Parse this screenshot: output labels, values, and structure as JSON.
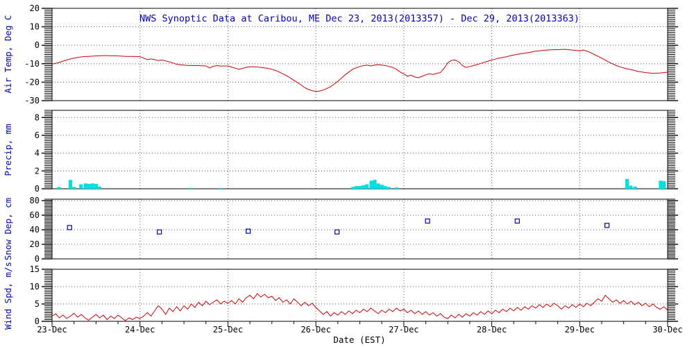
{
  "colors": {
    "title": "#0000bb",
    "axis_label": "#0000bb",
    "tick_label": "#000000",
    "frame": "#000000",
    "grid": "#555555",
    "temp_line": "#cc0000",
    "wind_line": "#cc0000",
    "precip_bar": "#00e0e0",
    "snow_marker": "#0000bb"
  },
  "chart_data": {
    "type": "line",
    "title": "NWS Synoptic Data at Caribou, ME   Dec 23, 2013(2013357) - Dec 29, 2013(2013363)",
    "xlabel": "Date (EST)",
    "x_unit": "days since Dec 23 2013 00:00 EST",
    "xlim": [
      0,
      7
    ],
    "x_tick_labels": [
      "23-Dec",
      "24-Dec",
      "25-Dec",
      "26-Dec",
      "27-Dec",
      "28-Dec",
      "29-Dec",
      "30-Dec"
    ],
    "grid": "dotted",
    "legend": "none",
    "panels": [
      {
        "id": "air-temp",
        "ylabel": "Air Temp, Deg C",
        "ylim": [
          -30,
          20
        ],
        "yticks": [
          20,
          10,
          0,
          -10,
          -20,
          -30
        ],
        "yminor": 1,
        "series_type": "line",
        "step_days": 0.0416667,
        "values": [
          -10.2,
          -9.8,
          -9.3,
          -8.6,
          -8.0,
          -7.4,
          -7.0,
          -6.6,
          -6.3,
          -6.1,
          -6.0,
          -5.9,
          -5.8,
          -5.7,
          -5.6,
          -5.6,
          -5.7,
          -5.7,
          -5.8,
          -5.9,
          -6.0,
          -6.0,
          -6.0,
          -6.1,
          -6.2,
          -7.0,
          -7.8,
          -7.4,
          -7.8,
          -8.3,
          -8.0,
          -8.5,
          -9.0,
          -9.6,
          -10.3,
          -10.6,
          -10.8,
          -10.9,
          -11.0,
          -11.0,
          -11.0,
          -11.1,
          -11.2,
          -12.3,
          -11.4,
          -11.0,
          -11.3,
          -11.2,
          -11.2,
          -11.8,
          -12.4,
          -13.0,
          -12.5,
          -11.9,
          -11.7,
          -11.7,
          -11.8,
          -12.0,
          -12.2,
          -12.6,
          -13.0,
          -13.7,
          -14.5,
          -15.5,
          -16.5,
          -17.7,
          -19.0,
          -20.2,
          -21.5,
          -23.0,
          -24.0,
          -24.6,
          -25.0,
          -24.8,
          -24.3,
          -23.4,
          -22.5,
          -21.0,
          -19.5,
          -17.8,
          -16.0,
          -14.5,
          -13.0,
          -12.2,
          -11.5,
          -11.0,
          -10.8,
          -11.2,
          -10.8,
          -10.5,
          -10.8,
          -11.0,
          -11.5,
          -12.0,
          -13.0,
          -14.5,
          -15.5,
          -16.8,
          -16.2,
          -17.2,
          -17.6,
          -16.8,
          -16.0,
          -15.5,
          -15.8,
          -15.2,
          -14.8,
          -12.5,
          -9.5,
          -8.2,
          -8.0,
          -9.0,
          -11.0,
          -12.0,
          -11.5,
          -11.0,
          -10.5,
          -9.8,
          -9.2,
          -8.6,
          -8.0,
          -7.5,
          -7.0,
          -6.6,
          -6.2,
          -5.7,
          -5.3,
          -4.9,
          -4.6,
          -4.3,
          -4.0,
          -3.6,
          -3.2,
          -3.0,
          -2.8,
          -2.6,
          -2.5,
          -2.4,
          -2.4,
          -2.3,
          -2.2,
          -2.4,
          -2.6,
          -2.8,
          -3.0,
          -2.6,
          -3.2,
          -4.0,
          -5.0,
          -6.0,
          -7.0,
          -8.1,
          -9.2,
          -10.1,
          -11.0,
          -11.7,
          -12.3,
          -12.8,
          -13.2,
          -13.7,
          -14.2,
          -14.5,
          -14.8,
          -15.0,
          -15.2,
          -15.1,
          -15.0,
          -14.8,
          -14.6
        ]
      },
      {
        "id": "precip",
        "ylabel": "Precip, mm",
        "ylim": [
          0,
          8.8
        ],
        "yticks": [
          8,
          6,
          4,
          2,
          0
        ],
        "yminor": 0.2,
        "series_type": "bar",
        "points": [
          [
            0.08,
            0.2
          ],
          [
            0.21,
            1.0
          ],
          [
            0.25,
            0.2
          ],
          [
            0.33,
            0.5
          ],
          [
            0.38,
            0.6
          ],
          [
            0.42,
            0.55
          ],
          [
            0.46,
            0.6
          ],
          [
            0.5,
            0.55
          ],
          [
            0.54,
            0.25
          ],
          [
            1.58,
            0.1
          ],
          [
            1.92,
            0.08
          ],
          [
            3.42,
            0.2
          ],
          [
            3.46,
            0.3
          ],
          [
            3.5,
            0.3
          ],
          [
            3.54,
            0.4
          ],
          [
            3.58,
            0.5
          ],
          [
            3.63,
            0.9
          ],
          [
            3.67,
            1.0
          ],
          [
            3.71,
            0.6
          ],
          [
            3.75,
            0.45
          ],
          [
            3.79,
            0.3
          ],
          [
            3.83,
            0.2
          ],
          [
            3.92,
            0.15
          ],
          [
            6.54,
            1.1
          ],
          [
            6.58,
            0.35
          ],
          [
            6.63,
            0.25
          ],
          [
            6.92,
            0.9
          ],
          [
            6.96,
            0.85
          ]
        ]
      },
      {
        "id": "snow-depth",
        "ylabel": "Snow Dep, cm",
        "ylim": [
          0,
          82
        ],
        "yticks": [
          80,
          60,
          40,
          20,
          0
        ],
        "yminor": 2,
        "series_type": "scatter-square",
        "points": [
          [
            0.2,
            43
          ],
          [
            1.22,
            37
          ],
          [
            2.23,
            38
          ],
          [
            3.24,
            37
          ],
          [
            4.27,
            52
          ],
          [
            5.29,
            52
          ],
          [
            6.31,
            46
          ]
        ]
      },
      {
        "id": "wind-speed",
        "ylabel": "Wind Spd, m/s",
        "ylim": [
          0,
          15
        ],
        "yticks": [
          15,
          10,
          5,
          0
        ],
        "yminor": 0.5,
        "series_type": "line",
        "step_days": 0.0416667,
        "values": [
          1.5,
          2.2,
          1.0,
          1.8,
          0.8,
          1.5,
          2.3,
          1.2,
          2.0,
          1.0,
          0.3,
          1.2,
          2.0,
          1.0,
          1.8,
          0.5,
          1.5,
          0.8,
          1.8,
          1.0,
          0.2,
          1.0,
          0.5,
          1.2,
          0.8,
          1.5,
          2.5,
          1.5,
          3.0,
          4.5,
          3.5,
          2.0,
          3.8,
          2.8,
          4.2,
          3.0,
          4.5,
          3.5,
          5.0,
          4.0,
          5.5,
          4.5,
          5.8,
          4.8,
          5.5,
          6.2,
          5.0,
          5.8,
          5.2,
          6.0,
          5.0,
          6.5,
          5.5,
          6.8,
          7.5,
          6.5,
          8.0,
          7.0,
          7.8,
          6.8,
          7.2,
          6.0,
          6.8,
          5.5,
          6.2,
          5.0,
          6.5,
          5.5,
          4.5,
          5.5,
          4.5,
          5.2,
          4.0,
          3.0,
          2.0,
          2.8,
          1.5,
          2.5,
          1.8,
          2.8,
          2.0,
          3.0,
          2.2,
          3.2,
          2.5,
          3.5,
          2.8,
          3.8,
          3.0,
          2.2,
          3.2,
          2.5,
          3.5,
          2.8,
          3.8,
          3.0,
          3.5,
          2.5,
          3.2,
          2.2,
          3.0,
          2.0,
          2.8,
          1.8,
          2.5,
          1.5,
          2.2,
          1.2,
          0.8,
          1.8,
          1.0,
          2.0,
          1.2,
          2.2,
          1.5,
          2.5,
          1.8,
          2.8,
          2.0,
          3.0,
          2.2,
          3.2,
          2.5,
          3.5,
          2.8,
          3.8,
          3.0,
          4.0,
          3.2,
          4.2,
          3.5,
          4.5,
          3.8,
          4.8,
          4.0,
          5.0,
          4.2,
          5.2,
          4.5,
          3.5,
          4.5,
          3.8,
          4.8,
          4.0,
          5.0,
          4.2,
          5.2,
          4.5,
          5.5,
          6.5,
          5.8,
          7.5,
          6.5,
          5.5,
          6.2,
          5.2,
          6.0,
          5.0,
          5.8,
          4.8,
          5.5,
          4.5,
          5.2,
          4.2,
          5.0,
          4.0,
          3.5,
          4.2,
          3.2
        ]
      }
    ]
  }
}
